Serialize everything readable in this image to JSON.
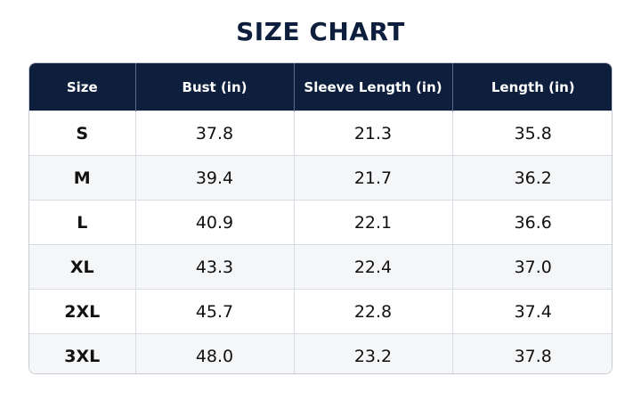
{
  "title": "SIZE CHART",
  "table": {
    "headers": [
      "Size",
      "Bust (in)",
      "Sleeve Length (in)",
      "Length (in)"
    ],
    "rows": [
      [
        "S",
        "37.8",
        "21.3",
        "35.8"
      ],
      [
        "M",
        "39.4",
        "21.7",
        "36.2"
      ],
      [
        "L",
        "40.9",
        "22.1",
        "36.6"
      ],
      [
        "XL",
        "43.3",
        "22.4",
        "37.0"
      ],
      [
        "2XL",
        "45.7",
        "22.8",
        "37.4"
      ],
      [
        "3XL",
        "48.0",
        "23.2",
        "37.8"
      ]
    ]
  },
  "colors": {
    "header_bg": "#0d1f3c",
    "title": "#0d1f3c",
    "stripe": "#f5f6f8"
  }
}
